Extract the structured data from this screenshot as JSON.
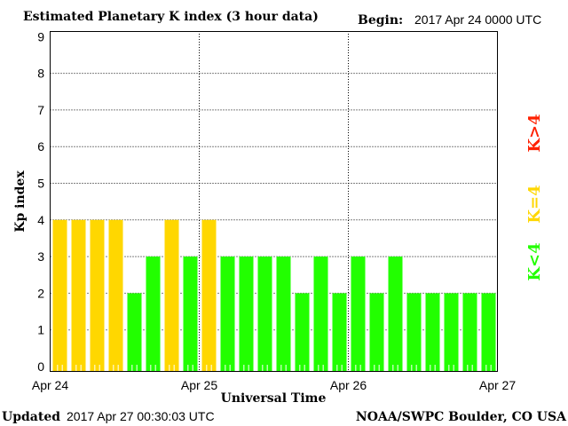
{
  "chart_data": {
    "type": "bar",
    "title": "Estimated Planetary K index (3 hour data)",
    "begin_label": "Begin:",
    "begin_value": "2017 Apr 24 0000 UTC",
    "xlabel": "Universal Time",
    "ylabel": "Kp index",
    "ylim": [
      0,
      9
    ],
    "yticks": [
      "0",
      "1",
      "2",
      "3",
      "4",
      "5",
      "6",
      "7",
      "8",
      "9"
    ],
    "xticks": [
      "Apr 24",
      "Apr 25",
      "Apr 26",
      "Apr 27"
    ],
    "values": [
      4,
      4,
      4,
      4,
      2,
      3,
      4,
      3,
      4,
      3,
      3,
      3,
      3,
      2,
      3,
      2,
      3,
      2,
      3,
      2,
      2,
      2,
      2,
      2
    ],
    "legend": [
      {
        "label": "K<4",
        "color": "#22ff00"
      },
      {
        "label": "K=4",
        "color": "#ffd700"
      },
      {
        "label": "K>4",
        "color": "#ff2000"
      }
    ],
    "grid": true
  },
  "footer": {
    "updated_label": "Updated",
    "updated_value": "2017 Apr 27 00:30:03 UTC",
    "credit": "NOAA/SWPC Boulder, CO USA"
  }
}
